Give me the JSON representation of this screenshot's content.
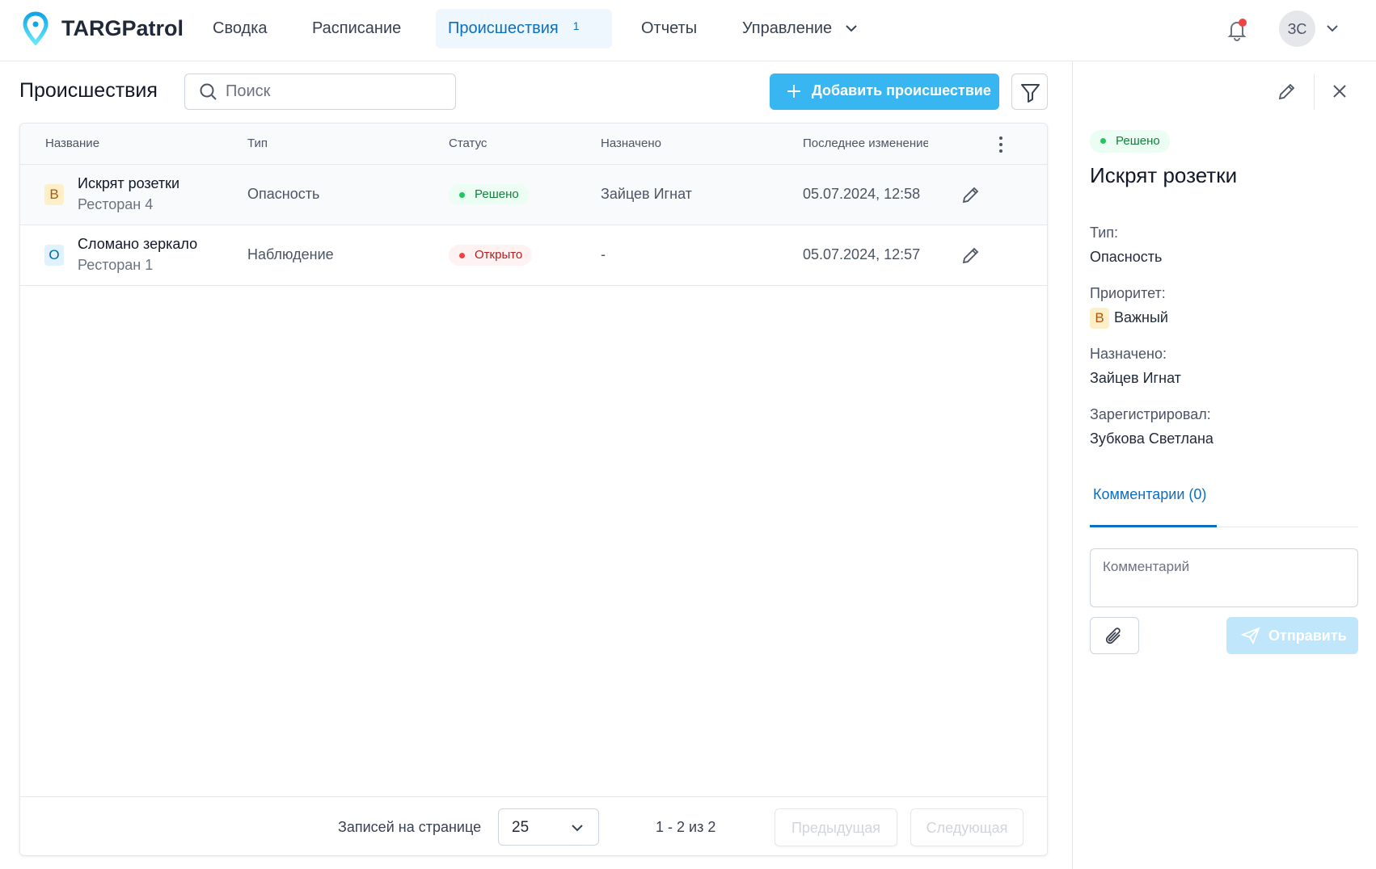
{
  "header": {
    "brand": "TARGPatrol",
    "nav": [
      "Сводка",
      "Расписание",
      "Происшествия",
      "Отчеты",
      "Управление"
    ],
    "active_count": "1",
    "avatar": "ЗС",
    "accent": "#38b6f1"
  },
  "main": {
    "title": "Происшествия",
    "search_placeholder": "Поиск",
    "add_label": "Добавить происшествие",
    "columns": [
      "Название",
      "Тип",
      "Статус",
      "Назначено",
      "Последнее изменение"
    ],
    "rows": [
      {
        "priority": "В",
        "name": "Искрят розетки",
        "location": "Ресторан 4",
        "type": "Опасность",
        "status": "Решено",
        "assigned": "Зайцев Игнат",
        "updated": "05.07.2024, 12:58"
      },
      {
        "priority": "О",
        "name": "Сломано зеркало",
        "location": "Ресторан 1",
        "type": "Наблюдение",
        "status": "Открыто",
        "assigned": "-",
        "updated": "05.07.2024, 12:57"
      }
    ],
    "footer": {
      "per_page_label": "Записей на странице",
      "per_page": "25",
      "range": "1 - 2 из 2",
      "prev": "Предыдущая",
      "next": "Следующая"
    }
  },
  "panel": {
    "status": "Решено",
    "title": "Искрят розетки",
    "type_label": "Тип:",
    "type": "Опасность",
    "priority_label": "Приоритет:",
    "priority_letter": "В",
    "priority": "Важный",
    "assigned_label": "Назначено:",
    "assigned": "Зайцев Игнат",
    "registered_label": "Зарегистрировал:",
    "registered": "Зубкова Светлана",
    "comments_tab": "Комментарии (0)",
    "comment_placeholder": "Комментарий",
    "send": "Отправить"
  }
}
